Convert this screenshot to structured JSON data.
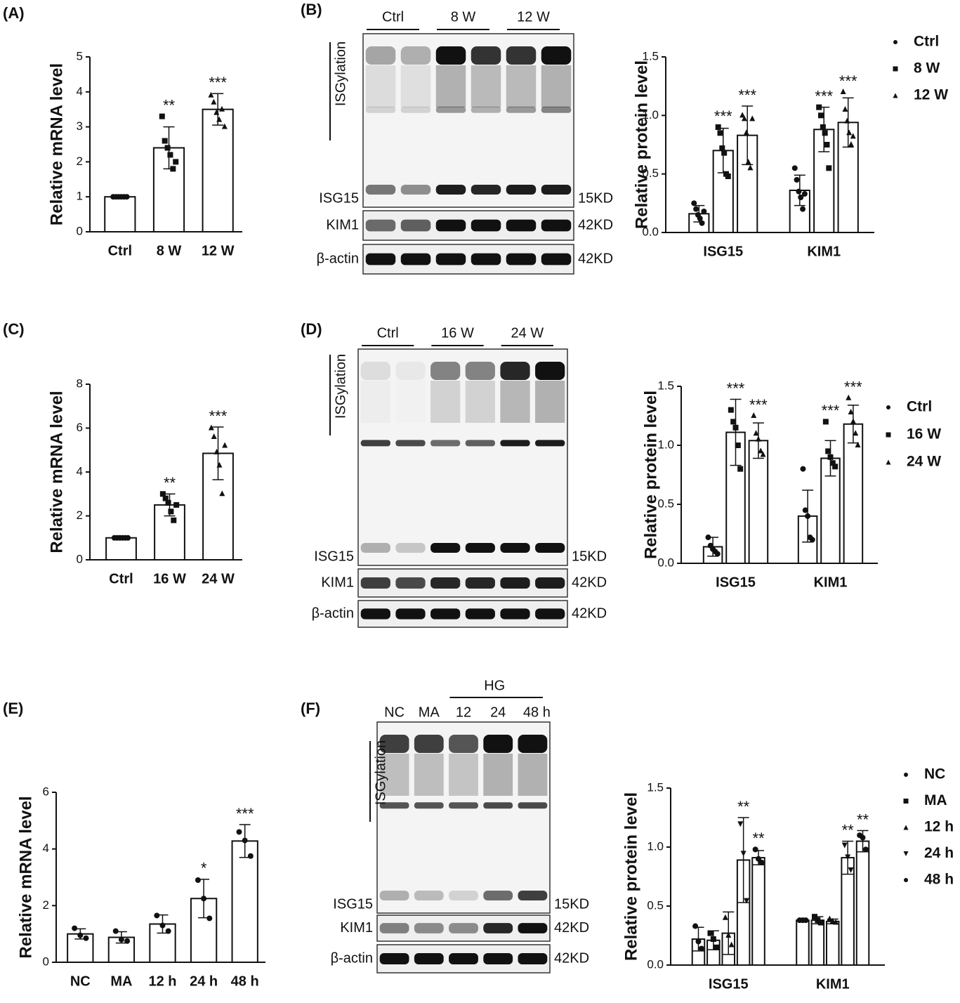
{
  "panel_labels": [
    "(A)",
    "(B)",
    "(C)",
    "(D)",
    "(E)",
    "(F)"
  ],
  "chart_data": [
    {
      "type": "bar",
      "ylabel": "Relative mRNA level",
      "categories": [
        "Ctrl",
        "8 W",
        "12 W"
      ],
      "values": [
        1.0,
        2.4,
        3.5
      ],
      "errors": [
        0.03,
        0.6,
        0.45
      ],
      "significance": [
        null,
        "**",
        "***"
      ],
      "markers": [
        "circle",
        "square",
        "triangle"
      ],
      "points": [
        [
          1,
          1,
          1,
          1,
          1,
          1
        ],
        [
          3.3,
          2.6,
          2.4,
          2.2,
          1.8,
          2.0
        ],
        [
          3.9,
          3.7,
          3.4,
          3.2,
          3.5,
          3.0
        ]
      ],
      "ylim": [
        0,
        5
      ],
      "yticks": [
        0,
        1,
        2,
        3,
        4,
        5
      ]
    },
    {
      "type": "grouped_bar",
      "ylabel": "Relative protein level",
      "categories": [
        "ISG15",
        "KIM1"
      ],
      "series": [
        {
          "name": "Ctrl",
          "marker": "circle",
          "color": "#ffffff",
          "values": [
            0.16,
            0.36
          ],
          "errors": [
            0.07,
            0.13
          ],
          "significance": [
            null,
            null
          ],
          "points": [
            [
              0.25,
              0.2,
              0.15,
              0.12,
              0.08,
              0.18
            ],
            [
              0.55,
              0.45,
              0.35,
              0.3,
              0.2,
              0.33
            ]
          ]
        },
        {
          "name": "8 W",
          "marker": "square",
          "color": "#ffffff",
          "values": [
            0.7,
            0.88
          ],
          "errors": [
            0.19,
            0.19
          ],
          "significance": [
            "***",
            "***"
          ],
          "points": [
            [
              0.9,
              0.85,
              0.72,
              0.68,
              0.5,
              0.48
            ],
            [
              1.07,
              1.0,
              0.9,
              0.85,
              0.75,
              0.55
            ]
          ]
        },
        {
          "name": "12 W",
          "marker": "triangle",
          "color": "#ffffff",
          "values": [
            0.83,
            0.94
          ],
          "errors": [
            0.25,
            0.21
          ],
          "significance": [
            "***",
            "***"
          ],
          "points": [
            [
              1.0,
              0.97,
              0.85,
              0.6,
              0.55,
              0.97
            ],
            [
              1.2,
              1.05,
              0.95,
              0.85,
              0.75,
              0.82
            ]
          ]
        }
      ],
      "ylim": [
        0,
        1.5
      ],
      "yticks": [
        {
          "value": 0,
          "label": "0.0"
        },
        0.5,
        {
          "value": 1,
          "label": "1.0"
        },
        1.5
      ]
    },
    {
      "type": "bar",
      "ylabel": "Relative mRNA level",
      "categories": [
        "Ctrl",
        "16 W",
        "24 W"
      ],
      "values": [
        1.0,
        2.5,
        4.85
      ],
      "errors": [
        0.03,
        0.5,
        1.2
      ],
      "significance": [
        null,
        "**",
        "***"
      ],
      "markers": [
        "circle",
        "square",
        "triangle"
      ],
      "points": [
        [
          1,
          1,
          1,
          1,
          1,
          1
        ],
        [
          3.0,
          2.8,
          2.6,
          2.2,
          1.8,
          2.5
        ],
        [
          6.0,
          5.6,
          4.9,
          4.3,
          3.0,
          5.2
        ]
      ],
      "ylim": [
        0,
        8
      ],
      "yticks": [
        0,
        2,
        4,
        6,
        8
      ]
    },
    {
      "type": "grouped_bar",
      "ylabel": "Relative protein level",
      "categories": [
        "ISG15",
        "KIM1"
      ],
      "series": [
        {
          "name": "Ctrl",
          "marker": "circle",
          "color": "#ffffff",
          "values": [
            0.14,
            0.4
          ],
          "errors": [
            0.08,
            0.22
          ],
          "significance": [
            null,
            null
          ],
          "points": [
            [
              0.22,
              0.15,
              0.12,
              0.1,
              0.08
            ],
            [
              0.8,
              0.45,
              0.4,
              0.22,
              0.2
            ]
          ]
        },
        {
          "name": "16 W",
          "marker": "square",
          "color": "#ffffff",
          "values": [
            1.11,
            0.89
          ],
          "errors": [
            0.28,
            0.15
          ],
          "significance": [
            "***",
            "***"
          ],
          "points": [
            [
              1.3,
              1.2,
              1.15,
              1.0,
              0.8
            ],
            [
              1.2,
              0.95,
              0.9,
              0.85,
              0.82
            ]
          ]
        },
        {
          "name": "24 W",
          "marker": "triangle",
          "color": "#ffffff",
          "values": [
            1.04,
            1.18
          ],
          "errors": [
            0.15,
            0.16
          ],
          "significance": [
            "***",
            "***"
          ],
          "points": [
            [
              1.25,
              1.1,
              1.05,
              0.95,
              0.92
            ],
            [
              1.4,
              1.28,
              1.2,
              1.1,
              1.0
            ]
          ]
        }
      ],
      "ylim": [
        0,
        1.5
      ],
      "yticks": [
        {
          "value": 0,
          "label": "0.0"
        },
        0.5,
        {
          "value": 1,
          "label": "1.0"
        },
        1.5
      ]
    },
    {
      "type": "bar",
      "ylabel": "Relative mRNA level",
      "categories": [
        "NC",
        "MA",
        "12 h",
        "24 h",
        "48 h"
      ],
      "values": [
        1.0,
        0.88,
        1.35,
        2.25,
        4.28
      ],
      "errors": [
        0.18,
        0.2,
        0.32,
        0.68,
        0.58
      ],
      "significance": [
        null,
        null,
        null,
        "*",
        "***"
      ],
      "markers": [
        "circle",
        "circle",
        "circle",
        "circle",
        "circle"
      ],
      "points": [
        [
          1.2,
          0.95,
          0.85
        ],
        [
          1.1,
          0.8,
          0.75
        ],
        [
          1.65,
          1.3,
          1.1
        ],
        [
          2.9,
          2.25,
          1.55
        ],
        [
          4.6,
          4.3,
          3.75
        ]
      ],
      "ylim": [
        0,
        6
      ],
      "yticks": [
        0,
        2,
        4,
        6
      ]
    },
    {
      "type": "grouped_bar",
      "ylabel": "Relative protein level",
      "categories": [
        "ISG15",
        "KIM1"
      ],
      "series": [
        {
          "name": "NC",
          "marker": "circle",
          "color": "#ffffff",
          "values": [
            0.22,
            0.38
          ],
          "errors": [
            0.1,
            0.01
          ],
          "significance": [
            null,
            null
          ],
          "points": [
            [
              0.33,
              0.2,
              0.14
            ],
            [
              0.38,
              0.38,
              0.38
            ]
          ]
        },
        {
          "name": "MA",
          "marker": "square",
          "color": "#ffffff",
          "values": [
            0.21,
            0.38
          ],
          "errors": [
            0.08,
            0.03
          ],
          "significance": [
            null,
            null
          ],
          "points": [
            [
              0.27,
              0.22,
              0.15
            ],
            [
              0.41,
              0.38,
              0.36
            ]
          ]
        },
        {
          "name": "12 h",
          "marker": "triangle",
          "color": "#ffffff",
          "values": [
            0.27,
            0.37
          ],
          "errors": [
            0.18,
            0.02
          ],
          "significance": [
            null,
            null
          ],
          "points": [
            [
              0.4,
              0.25,
              0.17
            ],
            [
              0.39,
              0.37,
              0.36
            ]
          ]
        },
        {
          "name": "24 h",
          "marker": "triangle-down",
          "color": "#ffffff",
          "values": [
            0.89,
            0.91
          ],
          "errors": [
            0.36,
            0.14
          ],
          "significance": [
            "**",
            "**"
          ],
          "points": [
            [
              1.2,
              0.95,
              0.55
            ],
            [
              1.02,
              0.92,
              0.81
            ]
          ]
        },
        {
          "name": "48 h",
          "marker": "circle",
          "color": "#ffffff",
          "values": [
            0.91,
            1.05
          ],
          "errors": [
            0.06,
            0.09
          ],
          "significance": [
            "**",
            "**"
          ],
          "points": [
            [
              0.98,
              0.9,
              0.87
            ],
            [
              1.1,
              1.08,
              0.98
            ]
          ]
        }
      ],
      "ylim": [
        0,
        1.5
      ],
      "yticks": [
        {
          "value": 0,
          "label": "0.0"
        },
        0.5,
        {
          "value": 1,
          "label": "1.0"
        },
        1.5
      ]
    }
  ],
  "blots": [
    {
      "lanes": [
        "Ctrl",
        "8 W",
        "12 W"
      ],
      "bracket": "ISGylation",
      "rows": [
        {
          "label": "ISG15",
          "size": "15KD"
        },
        {
          "label": "KIM1",
          "size": "42KD"
        },
        {
          "label": "β-actin",
          "size": "42KD"
        }
      ]
    },
    {
      "lanes": [
        "Ctrl",
        "16 W",
        "24 W"
      ],
      "bracket": "ISGylation",
      "rows": [
        {
          "label": "ISG15",
          "size": "15KD"
        },
        {
          "label": "KIM1",
          "size": "42KD"
        },
        {
          "label": "β-actin",
          "size": "42KD"
        }
      ]
    },
    {
      "lanes": [
        "NC",
        "MA",
        "12",
        "24",
        "48 h"
      ],
      "group": "HG",
      "bracket": "ISGylation",
      "rows": [
        {
          "label": "ISG15",
          "size": "15KD"
        },
        {
          "label": "KIM1",
          "size": "42KD"
        },
        {
          "label": "β-actin",
          "size": "42KD"
        }
      ]
    }
  ]
}
